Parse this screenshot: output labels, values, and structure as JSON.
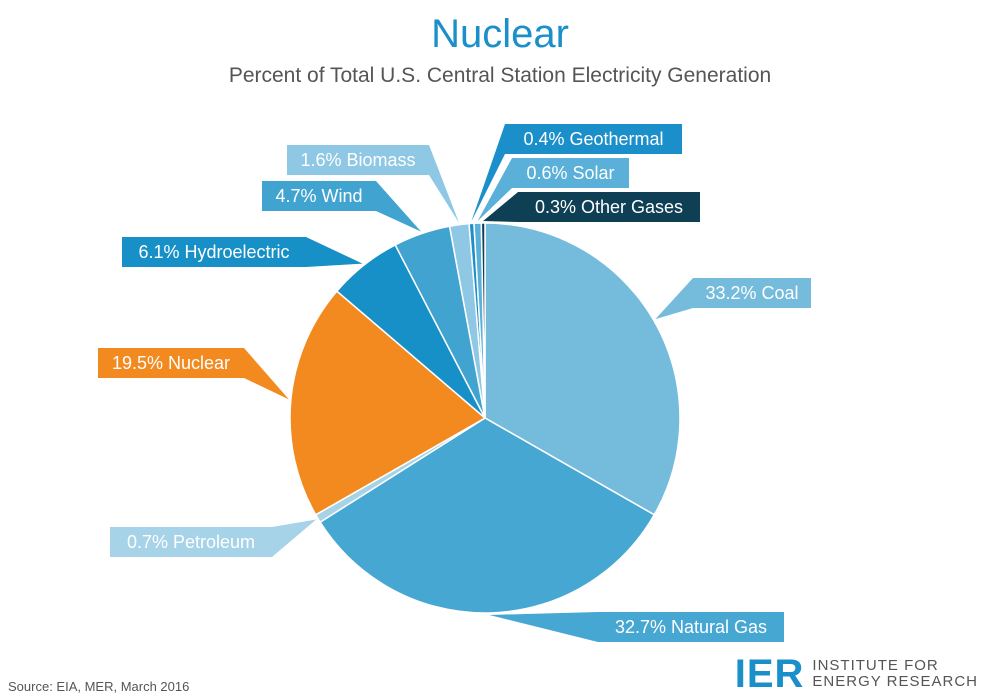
{
  "title": "Nuclear",
  "subtitle": "Percent of Total U.S. Central Station Electricity Generation",
  "source": "Source: EIA, MER, March 2016",
  "logo": {
    "mark": "IER",
    "line1": "INSTITUTE FOR",
    "line2": "ENERGY RESEARCH"
  },
  "chart_data": {
    "type": "pie",
    "title": "Nuclear",
    "subtitle": "Percent of Total U.S. Central Station Electricity Generation",
    "slices": [
      {
        "name": "Coal",
        "value": 33.2,
        "label": "33.2% Coal",
        "color": "#74bbdc"
      },
      {
        "name": "Natural Gas",
        "value": 32.7,
        "label": "32.7% Natural Gas",
        "color": "#46a7d3"
      },
      {
        "name": "Petroleum",
        "value": 0.7,
        "label": "0.7% Petroleum",
        "color": "#a6d3e8"
      },
      {
        "name": "Nuclear",
        "value": 19.5,
        "label": "19.5% Nuclear",
        "color": "#f28a20"
      },
      {
        "name": "Hydroelectric",
        "value": 6.1,
        "label": "6.1% Hydroelectric",
        "color": "#1690c6"
      },
      {
        "name": "Wind",
        "value": 4.7,
        "label": "4.7% Wind",
        "color": "#41a3d0"
      },
      {
        "name": "Biomass",
        "value": 1.6,
        "label": "1.6% Biomass",
        "color": "#8ec8e4"
      },
      {
        "name": "Geothermal",
        "value": 0.4,
        "label": "0.4% Geothermal",
        "color": "#1a8fc9"
      },
      {
        "name": "Solar",
        "value": 0.6,
        "label": "0.6% Solar",
        "color": "#5ab0d8"
      },
      {
        "name": "Other Gases",
        "value": 0.3,
        "label": "0.3% Other Gases",
        "color": "#0e3f55"
      }
    ]
  }
}
